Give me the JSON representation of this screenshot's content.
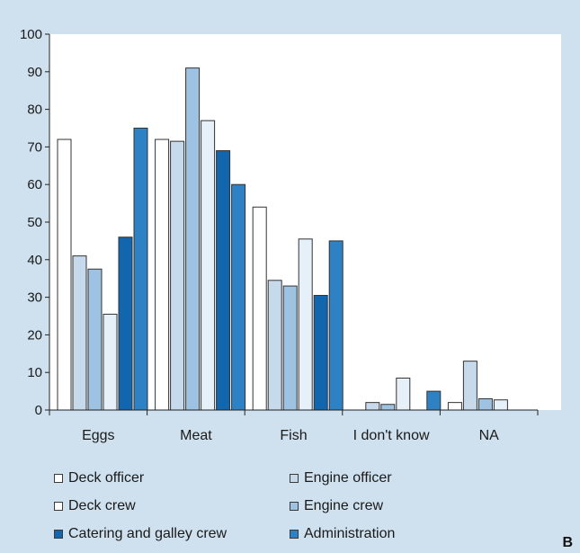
{
  "panel_label": "B",
  "chart_data": {
    "type": "bar",
    "categories": [
      "Eggs",
      "Meat",
      "Fish",
      "I don't know",
      "NA"
    ],
    "ylim": [
      0,
      100
    ],
    "yticks": [
      0,
      10,
      20,
      30,
      40,
      50,
      60,
      70,
      80,
      90,
      100
    ],
    "grid": false,
    "legend_position": "bottom",
    "series": [
      {
        "name": "Deck officer",
        "color": "#ffffff",
        "values": [
          72,
          72,
          54,
          0,
          2
        ]
      },
      {
        "name": "Engine officer",
        "color": "#c6daec",
        "values": [
          41,
          71.5,
          34.5,
          2,
          13
        ]
      },
      {
        "name": "Deck crew",
        "color": "#9dc2e2",
        "values": [
          37.5,
          91,
          33,
          1.5,
          3
        ]
      },
      {
        "name": "Engine crew",
        "color": "#e6f0f8",
        "values": [
          25.5,
          77,
          45.5,
          8.5,
          2.7
        ]
      },
      {
        "name": "Catering and galley crew",
        "color": "#1266ad",
        "values": [
          46,
          69,
          30.5,
          0,
          0
        ]
      },
      {
        "name": "Administration",
        "color": "#2e82c4",
        "values": [
          75,
          60,
          45,
          5,
          0
        ]
      }
    ],
    "legend_order": [
      0,
      1,
      2,
      3,
      4,
      5
    ],
    "legend_colors": [
      "#ffffff",
      "#c6daec",
      "#ffffff",
      "#9dc2e2",
      "#1266ad",
      "#2e82c4"
    ]
  }
}
